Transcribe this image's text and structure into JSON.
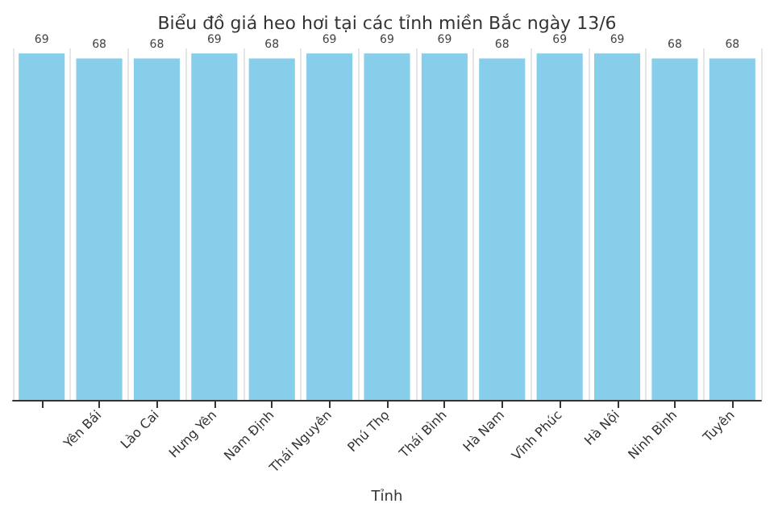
{
  "chart_data": {
    "type": "bar",
    "title": "Biểu đồ giá heo hơi tại các tỉnh miền Bắc ngày 13/6",
    "xlabel": "Tỉnh",
    "categories": [
      null,
      "Yên Bái",
      "Lào Cai",
      "Hưng Yên",
      "Nam Định",
      "Thái Nguyên",
      "Phú Thọ",
      "Thái Bình",
      "Hà Nam",
      "Vĩnh Phúc",
      "Hà Nội",
      "Ninh Bình",
      "Tuyên"
    ],
    "values": [
      69,
      68,
      68,
      69,
      68,
      69,
      69,
      69,
      68,
      69,
      69,
      68,
      68
    ],
    "color": "#87ceeb",
    "data_labels": true,
    "grid": "x",
    "tick_labels": "x"
  }
}
